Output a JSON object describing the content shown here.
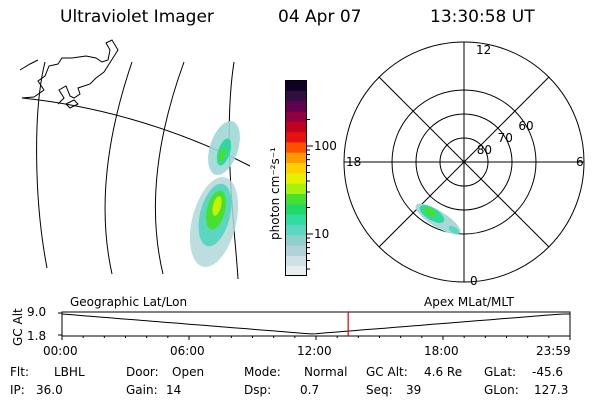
{
  "header": {
    "instrument": "Ultraviolet Imager",
    "date": "04 Apr 07",
    "time": "13:30:58 UT"
  },
  "colorbar": {
    "unit_label": "photon cm⁻²s⁻¹",
    "ticks": [
      {
        "label": "100",
        "value": 100
      },
      {
        "label": "10",
        "value": 10
      }
    ],
    "colors": [
      "#e8eef0",
      "#cfe0e6",
      "#b0d2d8",
      "#8fd0cc",
      "#5cd6c0",
      "#30dca0",
      "#20d868",
      "#48e030",
      "#a8f010",
      "#e6f000",
      "#ffd000",
      "#ff9a00",
      "#ff5000",
      "#e81010",
      "#c00020",
      "#900040",
      "#600050",
      "#301040",
      "#100020"
    ]
  },
  "polar": {
    "mlt_labels": [
      {
        "label": "12",
        "angle": 0
      },
      {
        "label": "6",
        "angle": 90
      },
      {
        "label": "0",
        "angle": 180
      },
      {
        "label": "18",
        "angle": 270
      }
    ],
    "lat_labels": [
      {
        "label": "60",
        "lat": 60
      },
      {
        "label": "70",
        "lat": 70
      },
      {
        "label": "80",
        "lat": 80
      }
    ]
  },
  "timeline": {
    "axis_label": "GC Alt",
    "y_ticks": [
      "9.0",
      "1.8"
    ],
    "left_label": "Geographic Lat/Lon",
    "right_label": "Apex MLat/MLT",
    "x_ticks": [
      "00:00",
      "06:00",
      "12:00",
      "18:00",
      "23:59"
    ],
    "current_time_hours": 13.52,
    "marker_color": "#e00000"
  },
  "footer": {
    "row1": [
      {
        "key": "Flt:",
        "value": "LBHL"
      },
      {
        "key": "Door:",
        "value": "Open"
      },
      {
        "key": "Mode:",
        "value": "Normal"
      },
      {
        "key": "GC Alt:",
        "value": "4.6 Re"
      },
      {
        "key": "GLat:",
        "value": "-45.6"
      }
    ],
    "row2": [
      {
        "key": "IP:",
        "value": "36.0"
      },
      {
        "key": "Gain:",
        "value": "14"
      },
      {
        "key": "Dsp:",
        "value": "0.7"
      },
      {
        "key": "Seq:",
        "value": "39"
      },
      {
        "key": "GLon:",
        "value": "127.3"
      }
    ]
  }
}
